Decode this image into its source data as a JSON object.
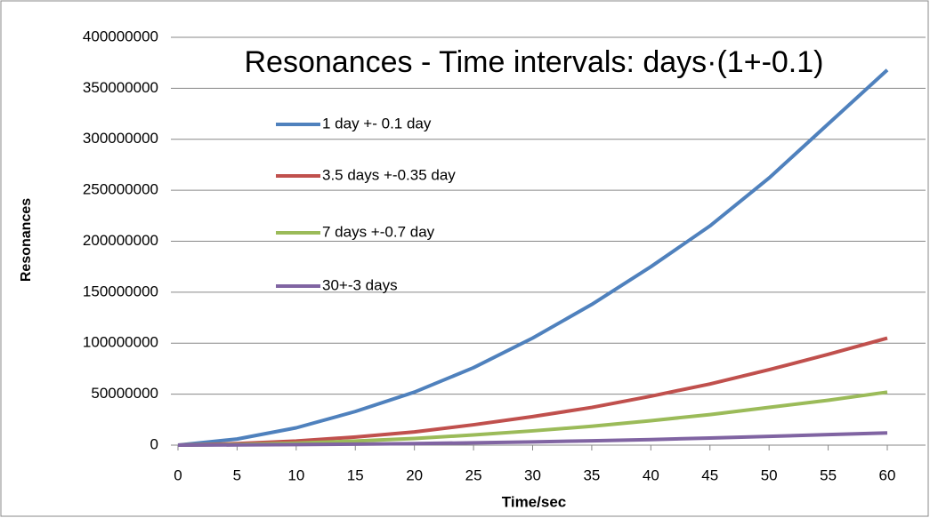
{
  "chart_data": {
    "type": "line",
    "title": "Resonances -  Time intervals: days·(1+-0.1)",
    "x_label": "Time/sec",
    "y_label": "Resonances",
    "x": [
      0,
      5,
      10,
      15,
      20,
      25,
      30,
      35,
      40,
      45,
      50,
      55,
      60
    ],
    "xlim": [
      0,
      60
    ],
    "xticks": [
      0,
      5,
      10,
      15,
      20,
      25,
      30,
      35,
      40,
      45,
      50,
      55,
      60
    ],
    "ylim": [
      0,
      400000000
    ],
    "yticks": [
      0,
      50000000,
      100000000,
      150000000,
      200000000,
      250000000,
      300000000,
      350000000,
      400000000
    ],
    "grid": true,
    "legend": "upper left",
    "series": [
      {
        "name": "1 day +- 0.1 day",
        "color": "#4f81bd",
        "values": [
          0,
          6000000,
          17000000,
          33000000,
          52000000,
          76000000,
          105000000,
          138000000,
          175000000,
          215000000,
          262000000,
          315000000,
          368000000
        ]
      },
      {
        "name": "3.5 days +-0.35 day",
        "color": "#c0504d",
        "values": [
          0,
          1500000,
          4000000,
          8000000,
          13000000,
          20000000,
          28000000,
          37000000,
          48000000,
          60000000,
          74000000,
          89000000,
          105000000
        ]
      },
      {
        "name": "7 days +-0.7 day",
        "color": "#9bbb59",
        "values": [
          0,
          700000,
          2000000,
          4000000,
          6500000,
          10000000,
          14000000,
          18500000,
          24000000,
          30000000,
          37000000,
          44000000,
          52000000
        ]
      },
      {
        "name": "30+-3 days",
        "color": "#8064a2",
        "values": [
          0,
          200000,
          500000,
          1000000,
          1500000,
          2300000,
          3200000,
          4300000,
          5500000,
          7000000,
          8600000,
          10300000,
          12000000
        ]
      }
    ]
  }
}
